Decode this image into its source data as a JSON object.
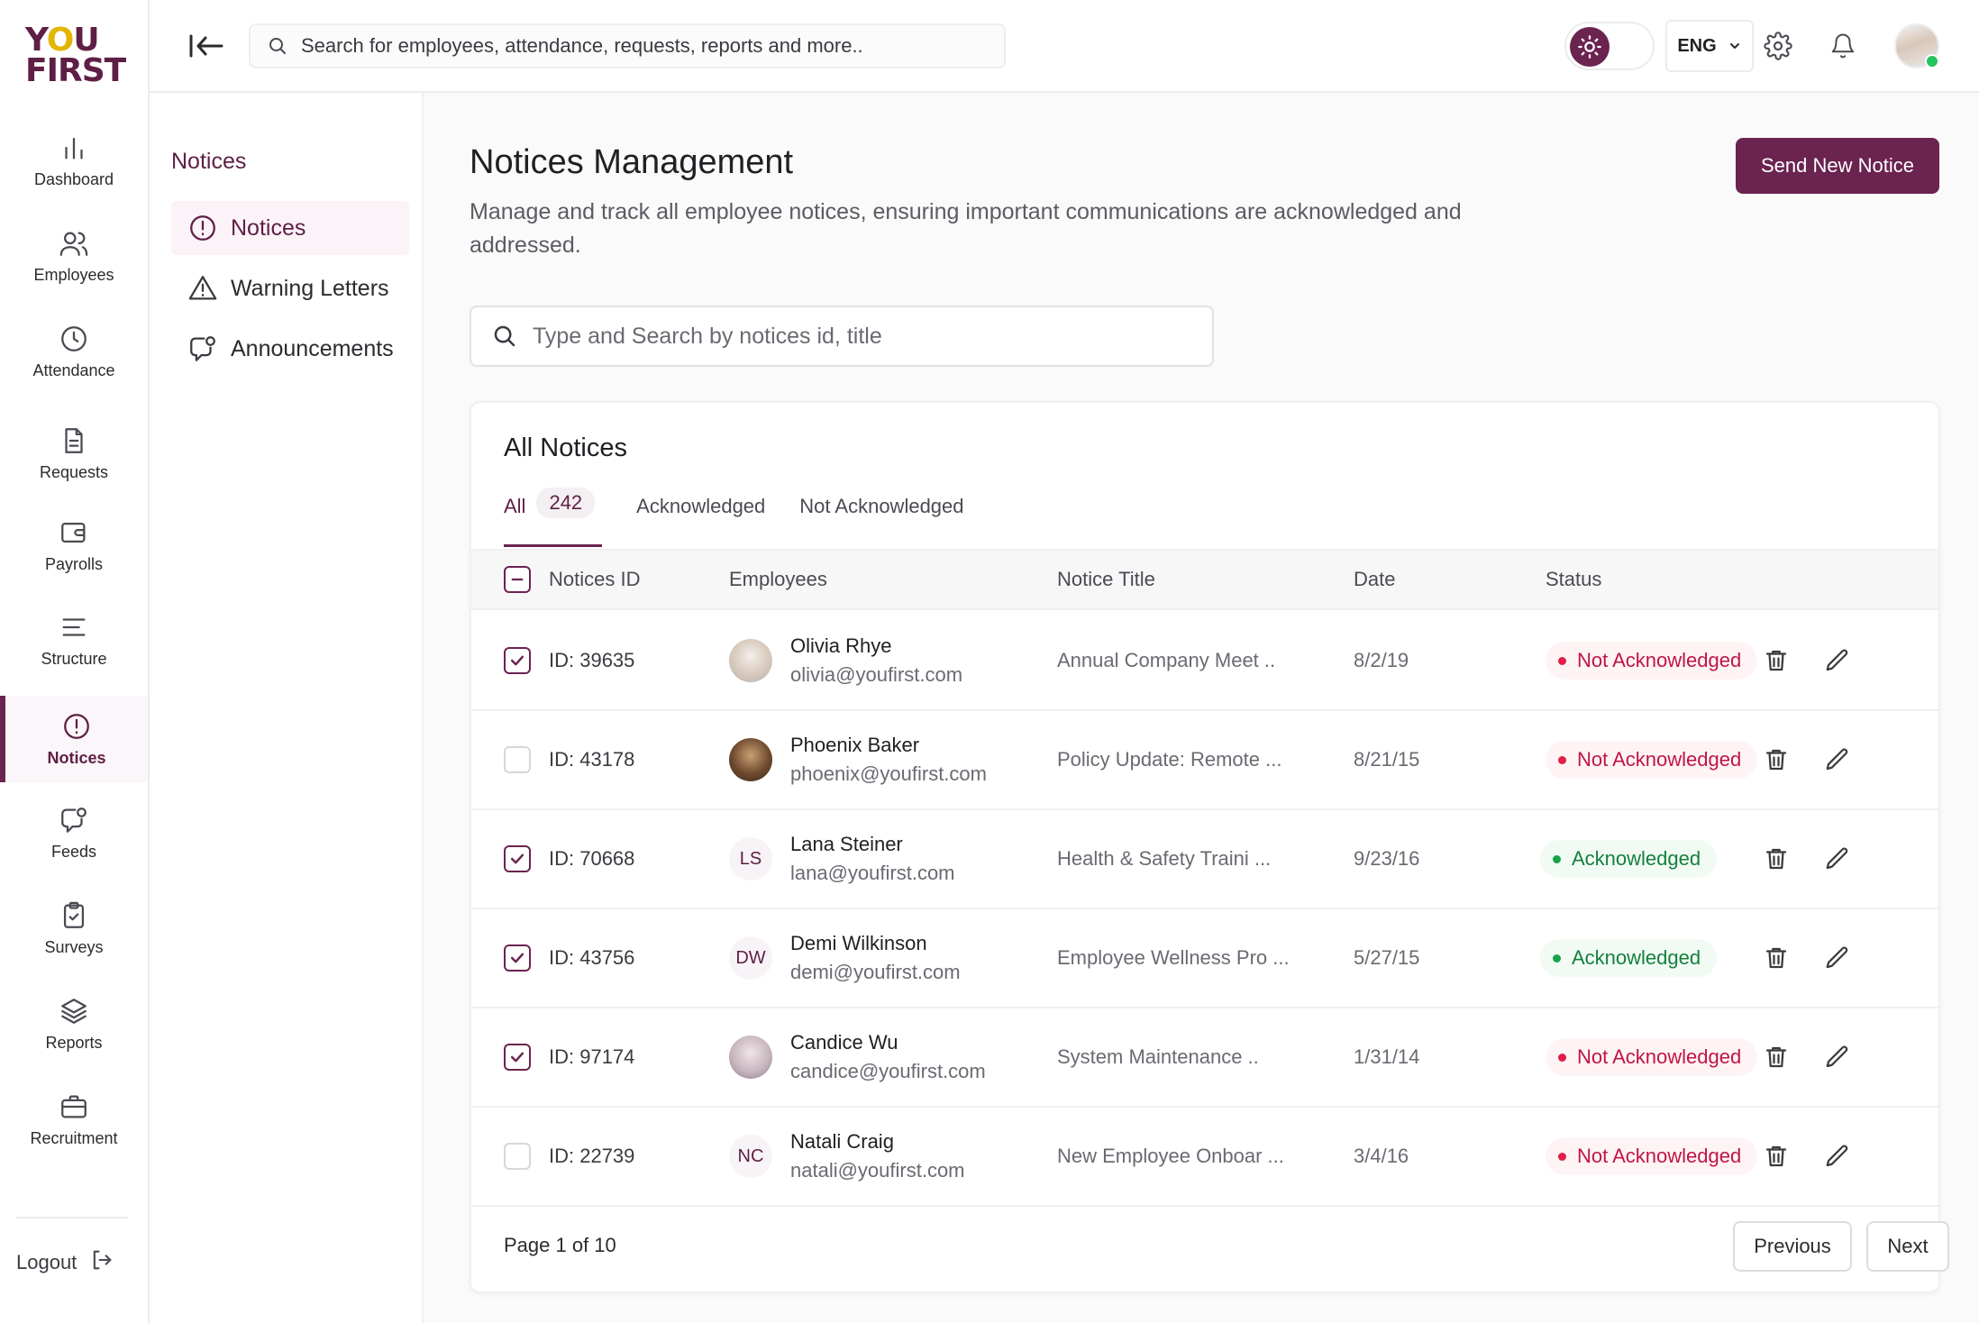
{
  "app": {
    "logo_line1": "YOU",
    "logo_line2": "FIRST"
  },
  "topbar": {
    "search_placeholder": "Search for employees, attendance, requests, reports and more..",
    "language": "ENG"
  },
  "nav": {
    "items": [
      {
        "label": "Dashboard",
        "icon": "bar-chart-icon",
        "active": false
      },
      {
        "label": "Employees",
        "icon": "users-icon",
        "active": false
      },
      {
        "label": "Attendance",
        "icon": "clock-icon",
        "active": false
      },
      {
        "label": "Requests",
        "icon": "document-icon",
        "active": false
      },
      {
        "label": "Payrolls",
        "icon": "wallet-icon",
        "active": false
      },
      {
        "label": "Structure",
        "icon": "structure-lines-icon",
        "active": false
      },
      {
        "label": "Notices",
        "icon": "alert-circle-icon",
        "active": true
      },
      {
        "label": "Feeds",
        "icon": "message-badge-icon",
        "active": false
      },
      {
        "label": "Surveys",
        "icon": "clipboard-check-icon",
        "active": false
      },
      {
        "label": "Reports",
        "icon": "layers-icon",
        "active": false
      },
      {
        "label": "Recruitment",
        "icon": "briefcase-icon",
        "active": false
      }
    ],
    "logout_label": "Logout"
  },
  "subnav": {
    "title": "Notices",
    "items": [
      {
        "label": "Notices",
        "icon": "alert-circle-icon",
        "active": true
      },
      {
        "label": "Warning Letters",
        "icon": "warning-triangle-icon",
        "active": false
      },
      {
        "label": "Announcements",
        "icon": "message-badge-icon",
        "active": false
      }
    ]
  },
  "page": {
    "title": "Notices Management",
    "description": "Manage and track all employee notices, ensuring important communications are acknowledged and addressed.",
    "send_button": "Send New Notice",
    "search_placeholder": "Type and Search by notices id, title"
  },
  "table": {
    "title": "All Notices",
    "tabs": [
      {
        "label": "All",
        "count": "242",
        "active": true
      },
      {
        "label": "Acknowledged",
        "active": false
      },
      {
        "label": "Not Acknowledged",
        "active": false
      }
    ],
    "headers": [
      "Notices ID",
      "Employees",
      "Notice Title",
      "Date",
      "Status"
    ],
    "rows": [
      {
        "checked": true,
        "id": "ID: 39635",
        "name": "Olivia Rhye",
        "email": "olivia@youfirst.com",
        "initials": "",
        "title": "Annual Company Meet ..",
        "date": "8/2/19",
        "status": "Not Acknowledged",
        "ack": false
      },
      {
        "checked": false,
        "id": "ID: 43178",
        "name": "Phoenix Baker",
        "email": "phoenix@youfirst.com",
        "initials": "",
        "title": "Policy Update: Remote ...",
        "date": "8/21/15",
        "status": "Not Acknowledged",
        "ack": false
      },
      {
        "checked": true,
        "id": "ID: 70668",
        "name": "Lana Steiner",
        "email": "lana@youfirst.com",
        "initials": "LS",
        "title": "Health & Safety Traini ...",
        "date": "9/23/16",
        "status": "Acknowledged",
        "ack": true
      },
      {
        "checked": true,
        "id": "ID: 43756",
        "name": "Demi Wilkinson",
        "email": "demi@youfirst.com",
        "initials": "DW",
        "title": "Employee Wellness Pro ...",
        "date": "5/27/15",
        "status": "Acknowledged",
        "ack": true
      },
      {
        "checked": true,
        "id": "ID: 97174",
        "name": "Candice Wu",
        "email": "candice@youfirst.com",
        "initials": "",
        "title": "System Maintenance ..",
        "date": "1/31/14",
        "status": "Not Acknowledged",
        "ack": false
      },
      {
        "checked": false,
        "id": "ID: 22739",
        "name": "Natali Craig",
        "email": "natali@youfirst.com",
        "initials": "NC",
        "title": "New Employee Onboar ...",
        "date": "3/4/16",
        "status": "Not Acknowledged",
        "ack": false
      }
    ],
    "pagination": {
      "info": "Page 1 of 10",
      "previous": "Previous",
      "next": "Next"
    }
  },
  "colors": {
    "brand": "#6b2350",
    "accent_yellow": "#e3b500",
    "not_ack": "#e11d48",
    "ack": "#16a34a"
  }
}
